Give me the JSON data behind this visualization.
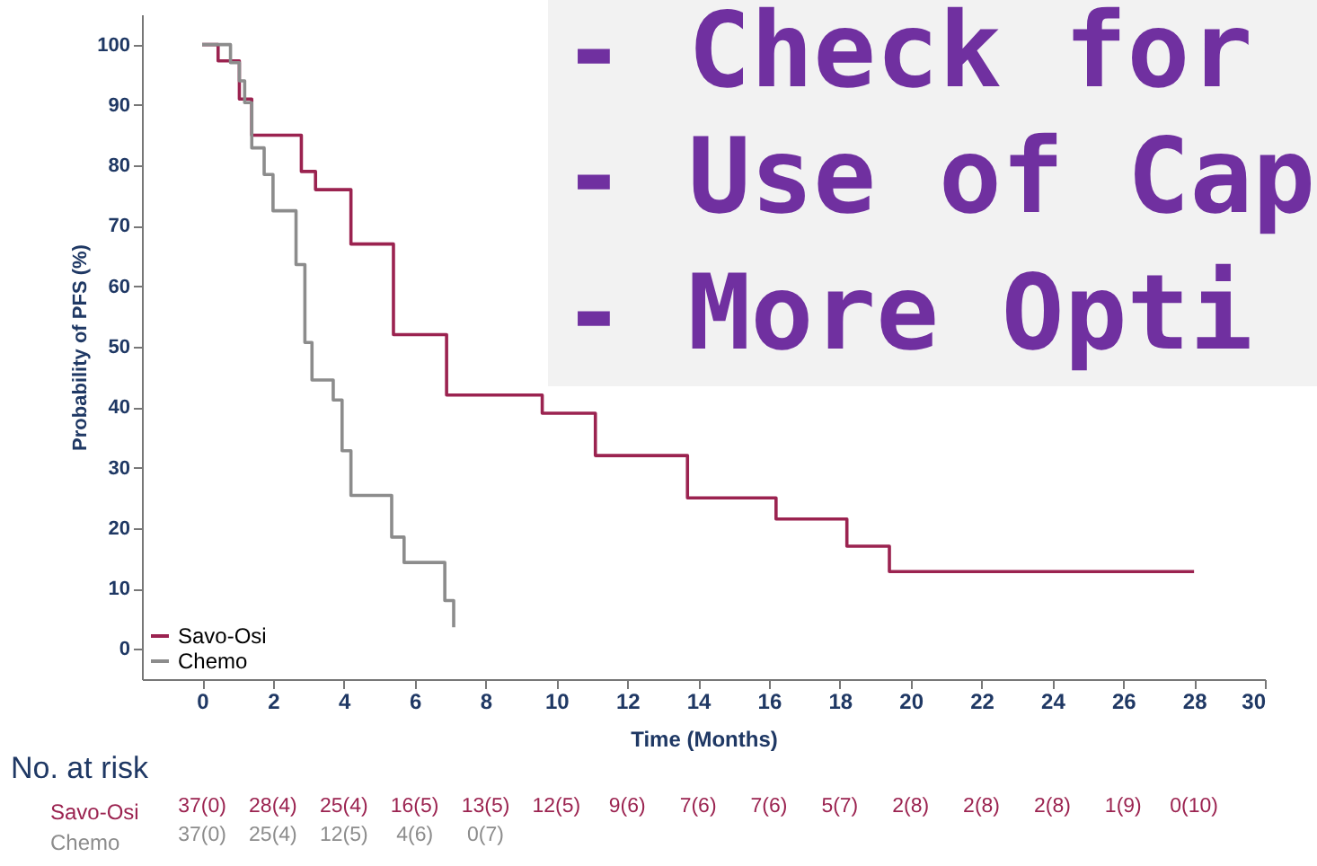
{
  "chart_data": {
    "type": "step",
    "xlabel": "Time (Months)",
    "ylabel": "Probability of PFS (%)",
    "xlim": [
      -1.7,
      30
    ],
    "xticks": [
      0,
      2,
      4,
      6,
      8,
      10,
      12,
      14,
      16,
      18,
      20,
      22,
      24,
      26,
      28,
      30
    ],
    "ylim": [
      -5,
      105
    ],
    "yticks": [
      0,
      10,
      20,
      30,
      40,
      50,
      60,
      70,
      80,
      90,
      100
    ],
    "legend": "bottom left",
    "line_style": "solid",
    "series": [
      {
        "name": "Savo-Osi",
        "color": "#9b2350",
        "x": [
          0,
          0.45,
          1.05,
          1.4,
          2.8,
          3.2,
          4.2,
          5.4,
          6.9,
          9.6,
          11.1,
          13.7,
          16.2,
          18.2,
          19.4,
          28
        ],
        "values": [
          100,
          97.3,
          91,
          85,
          79,
          76,
          67,
          52,
          42,
          39,
          32,
          25,
          21.5,
          17,
          12.8,
          12.8
        ]
      },
      {
        "name": "Chemo",
        "color": "#8c8c8c",
        "x": [
          0,
          0.8,
          1.05,
          1.2,
          1.4,
          1.75,
          2.0,
          2.65,
          2.9,
          3.1,
          3.7,
          3.95,
          4.2,
          5.35,
          5.7,
          6.85,
          7.1
        ],
        "values": [
          100,
          97,
          94,
          90.4,
          82.9,
          78.5,
          72.5,
          63.6,
          50.7,
          44.5,
          41.2,
          32.8,
          25.4,
          18.5,
          14.3,
          8,
          3.6
        ]
      }
    ],
    "annotations": [
      "- Check for",
      "- Use of Cap",
      "- More Opti",
      "No. at risk",
      "Savo-Osi",
      "Chemo",
      "37(0) 28(4) 25(4) 16(5) 13(5) 12(5) 9(6) 7(6) 7(6) 5(7) 2(8) 2(8) 2(8) 1(9) 0(10)",
      "37(0) 25(4) 12(5) 4(6) 0(7)"
    ]
  }
}
